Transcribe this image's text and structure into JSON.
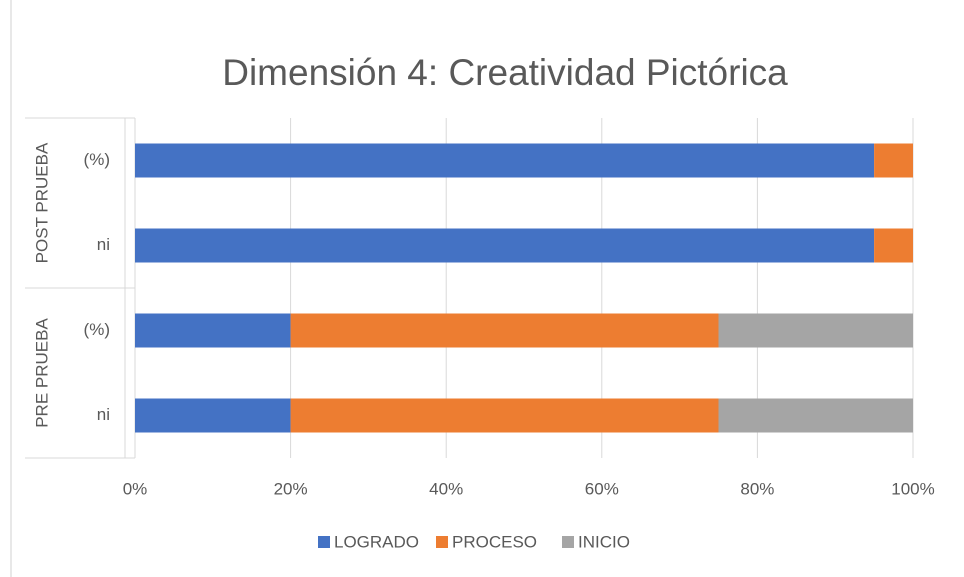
{
  "chart_data": {
    "type": "stacked-bar-horizontal-100",
    "title": "Dimensión 4: Creatividad Pictórica",
    "category_groups": [
      {
        "label": "POST PRUEBA",
        "categories": [
          "(%)",
          "ni"
        ]
      },
      {
        "label": "PRE PRUEBA",
        "categories": [
          "(%)",
          "ni"
        ]
      }
    ],
    "series": [
      {
        "name": "LOGRADO",
        "color": "#4472c4",
        "values": [
          95,
          95,
          20,
          20
        ]
      },
      {
        "name": "PROCESO",
        "color": "#ed7d31",
        "values": [
          5,
          5,
          55,
          55
        ]
      },
      {
        "name": "INICIO",
        "color": "#a5a5a5",
        "values": [
          0,
          0,
          25,
          25
        ]
      }
    ],
    "xlim": [
      0,
      100
    ],
    "xticks": [
      {
        "value": 0,
        "label": "0%"
      },
      {
        "value": 20,
        "label": "20%"
      },
      {
        "value": 40,
        "label": "40%"
      },
      {
        "value": 60,
        "label": "60%"
      },
      {
        "value": 80,
        "label": "80%"
      },
      {
        "value": 100,
        "label": "100%"
      }
    ],
    "grid": true,
    "legend": "bottom"
  }
}
